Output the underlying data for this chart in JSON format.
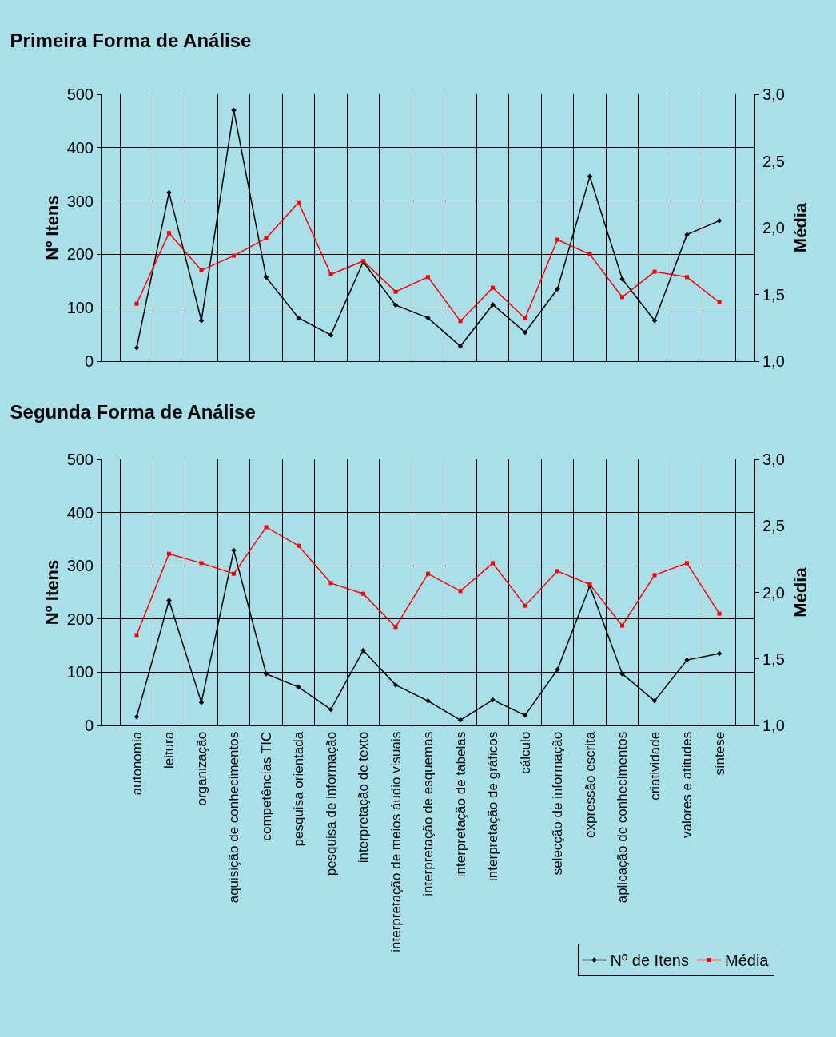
{
  "chart_data": [
    {
      "type": "line",
      "title": "Primeira Forma de Análise",
      "ylabel": "Nº Itens",
      "y2label": "Média",
      "categories": [
        null,
        null,
        null,
        null,
        null,
        null,
        null,
        null,
        null,
        null,
        null,
        null,
        null,
        null,
        null,
        null,
        null,
        null,
        null
      ],
      "series": [
        {
          "color": "#000000",
          "marker": "diamond",
          "values": [
            25,
            316,
            76,
            470,
            157,
            81,
            49,
            186,
            105,
            81,
            28,
            106,
            54,
            135,
            346,
            154,
            76,
            237,
            263
          ]
        },
        {
          "color": "#ff0000",
          "marker": "square",
          "axis": "y2",
          "values": [
            1.43,
            1.96,
            1.68,
            1.79,
            1.92,
            2.19,
            1.65,
            1.75,
            1.52,
            1.63,
            1.3,
            1.55,
            1.32,
            1.91,
            1.8,
            1.48,
            1.67,
            1.63,
            1.44
          ]
        }
      ],
      "ylim": [
        0,
        500
      ],
      "yticks": [
        0,
        100,
        200,
        300,
        400,
        500
      ],
      "y2lim": [
        1,
        3
      ],
      "y2ticks": [
        {
          "value": 1,
          "label": "1,0"
        },
        {
          "value": 1.5,
          "label": "1,5"
        },
        {
          "value": 2,
          "label": "2,0"
        },
        {
          "value": 2.5,
          "label": "2,5"
        },
        {
          "value": 3,
          "label": "3,0"
        }
      ],
      "grid": true,
      "legend": false,
      "tick_labels": "y"
    },
    {
      "type": "line",
      "title": "Segunda Forma de Análise",
      "ylabel": "Nº Itens",
      "y2label": "Média",
      "categories": [
        "autonomia",
        "leitura",
        "organização",
        "aquisição de conhecimentos",
        "competências TIC",
        "pesquisa orientada",
        "pesquisa de informação",
        "interpretação de texto",
        "interpretação de meios áudio visuais",
        "interpretação de esquemas",
        "interpretação de tabelas",
        "interpretação de gráficos",
        "cálculo",
        "selecção de informação",
        "expressão escrita",
        "aplicação de conhecimentos",
        "criatividade",
        "valores e atitudes",
        "síntese"
      ],
      "series": [
        {
          "name": "Nº de Itens",
          "color": "#000000",
          "marker": "diamond",
          "values": [
            16,
            235,
            43,
            329,
            97,
            72,
            30,
            141,
            76,
            46,
            10,
            48,
            19,
            105,
            262,
            97,
            46,
            123,
            135
          ]
        },
        {
          "name": "Média",
          "color": "#ff0000",
          "marker": "square",
          "axis": "y2",
          "values": [
            1.68,
            2.29,
            2.22,
            2.14,
            2.49,
            2.35,
            2.07,
            1.99,
            1.74,
            2.14,
            2.01,
            2.22,
            1.9,
            2.16,
            2.06,
            1.75,
            2.13,
            2.22,
            1.84
          ]
        }
      ],
      "ylim": [
        0,
        500
      ],
      "yticks": [
        0,
        100,
        200,
        300,
        400,
        500
      ],
      "y2lim": [
        1,
        3
      ],
      "y2ticks": [
        {
          "value": 1,
          "label": "1,0"
        },
        {
          "value": 1.5,
          "label": "1,5"
        },
        {
          "value": 2,
          "label": "2,0"
        },
        {
          "value": 2.5,
          "label": "2,5"
        },
        {
          "value": 3,
          "label": "3,0"
        }
      ],
      "grid": true,
      "legend": "bottom right"
    }
  ]
}
